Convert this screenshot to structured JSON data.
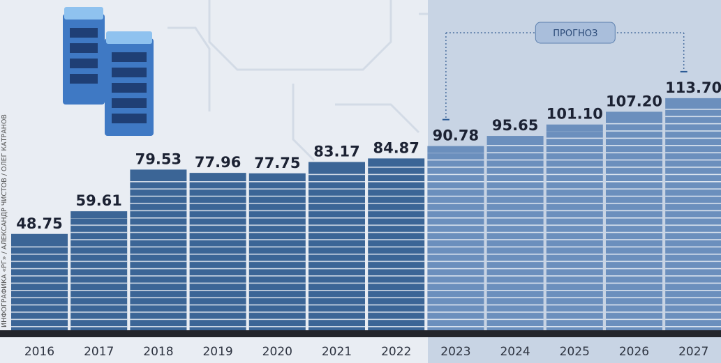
{
  "chart_data": {
    "type": "bar",
    "categories": [
      "2016",
      "2017",
      "2018",
      "2019",
      "2020",
      "2021",
      "2022",
      "2023",
      "2024",
      "2025",
      "2026",
      "2027"
    ],
    "values": [
      48.75,
      59.61,
      79.53,
      77.96,
      77.75,
      83.17,
      84.87,
      90.78,
      95.65,
      101.1,
      107.2,
      113.7
    ],
    "value_labels": [
      "48.75",
      "59.61",
      "79.53",
      "77.96",
      "77.75",
      "83.17",
      "84.87",
      "90.78",
      "95.65",
      "101.10",
      "107.20",
      "113.70"
    ],
    "color": "#3b6596",
    "forecast": {
      "label": "ПРОГНОЗ",
      "from": "2023",
      "color": "#6b8fbd"
    },
    "credit": "ИНФОГРАФИКА «РГ» / АЛЕКСАНДР ЧИСТОВ / ОЛЕГ КАТРАНОВ"
  }
}
